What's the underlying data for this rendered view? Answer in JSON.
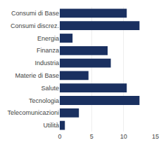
{
  "chart_data": {
    "type": "bar",
    "orientation": "horizontal",
    "categories": [
      "Consumi di Base",
      "Consumi discrez.",
      "Energia",
      "Finanza",
      "Industria",
      "Materie di Base",
      "Salute",
      "Tecnologia",
      "Telecomunicazioni",
      "Utilità"
    ],
    "values": [
      10.5,
      12.5,
      2.0,
      7.5,
      8.0,
      4.5,
      10.5,
      12.5,
      3.0,
      0.8
    ],
    "color": "#1a3060",
    "xlim": [
      0,
      15
    ],
    "xticks": [
      0,
      5,
      10,
      15
    ],
    "grid": true
  }
}
